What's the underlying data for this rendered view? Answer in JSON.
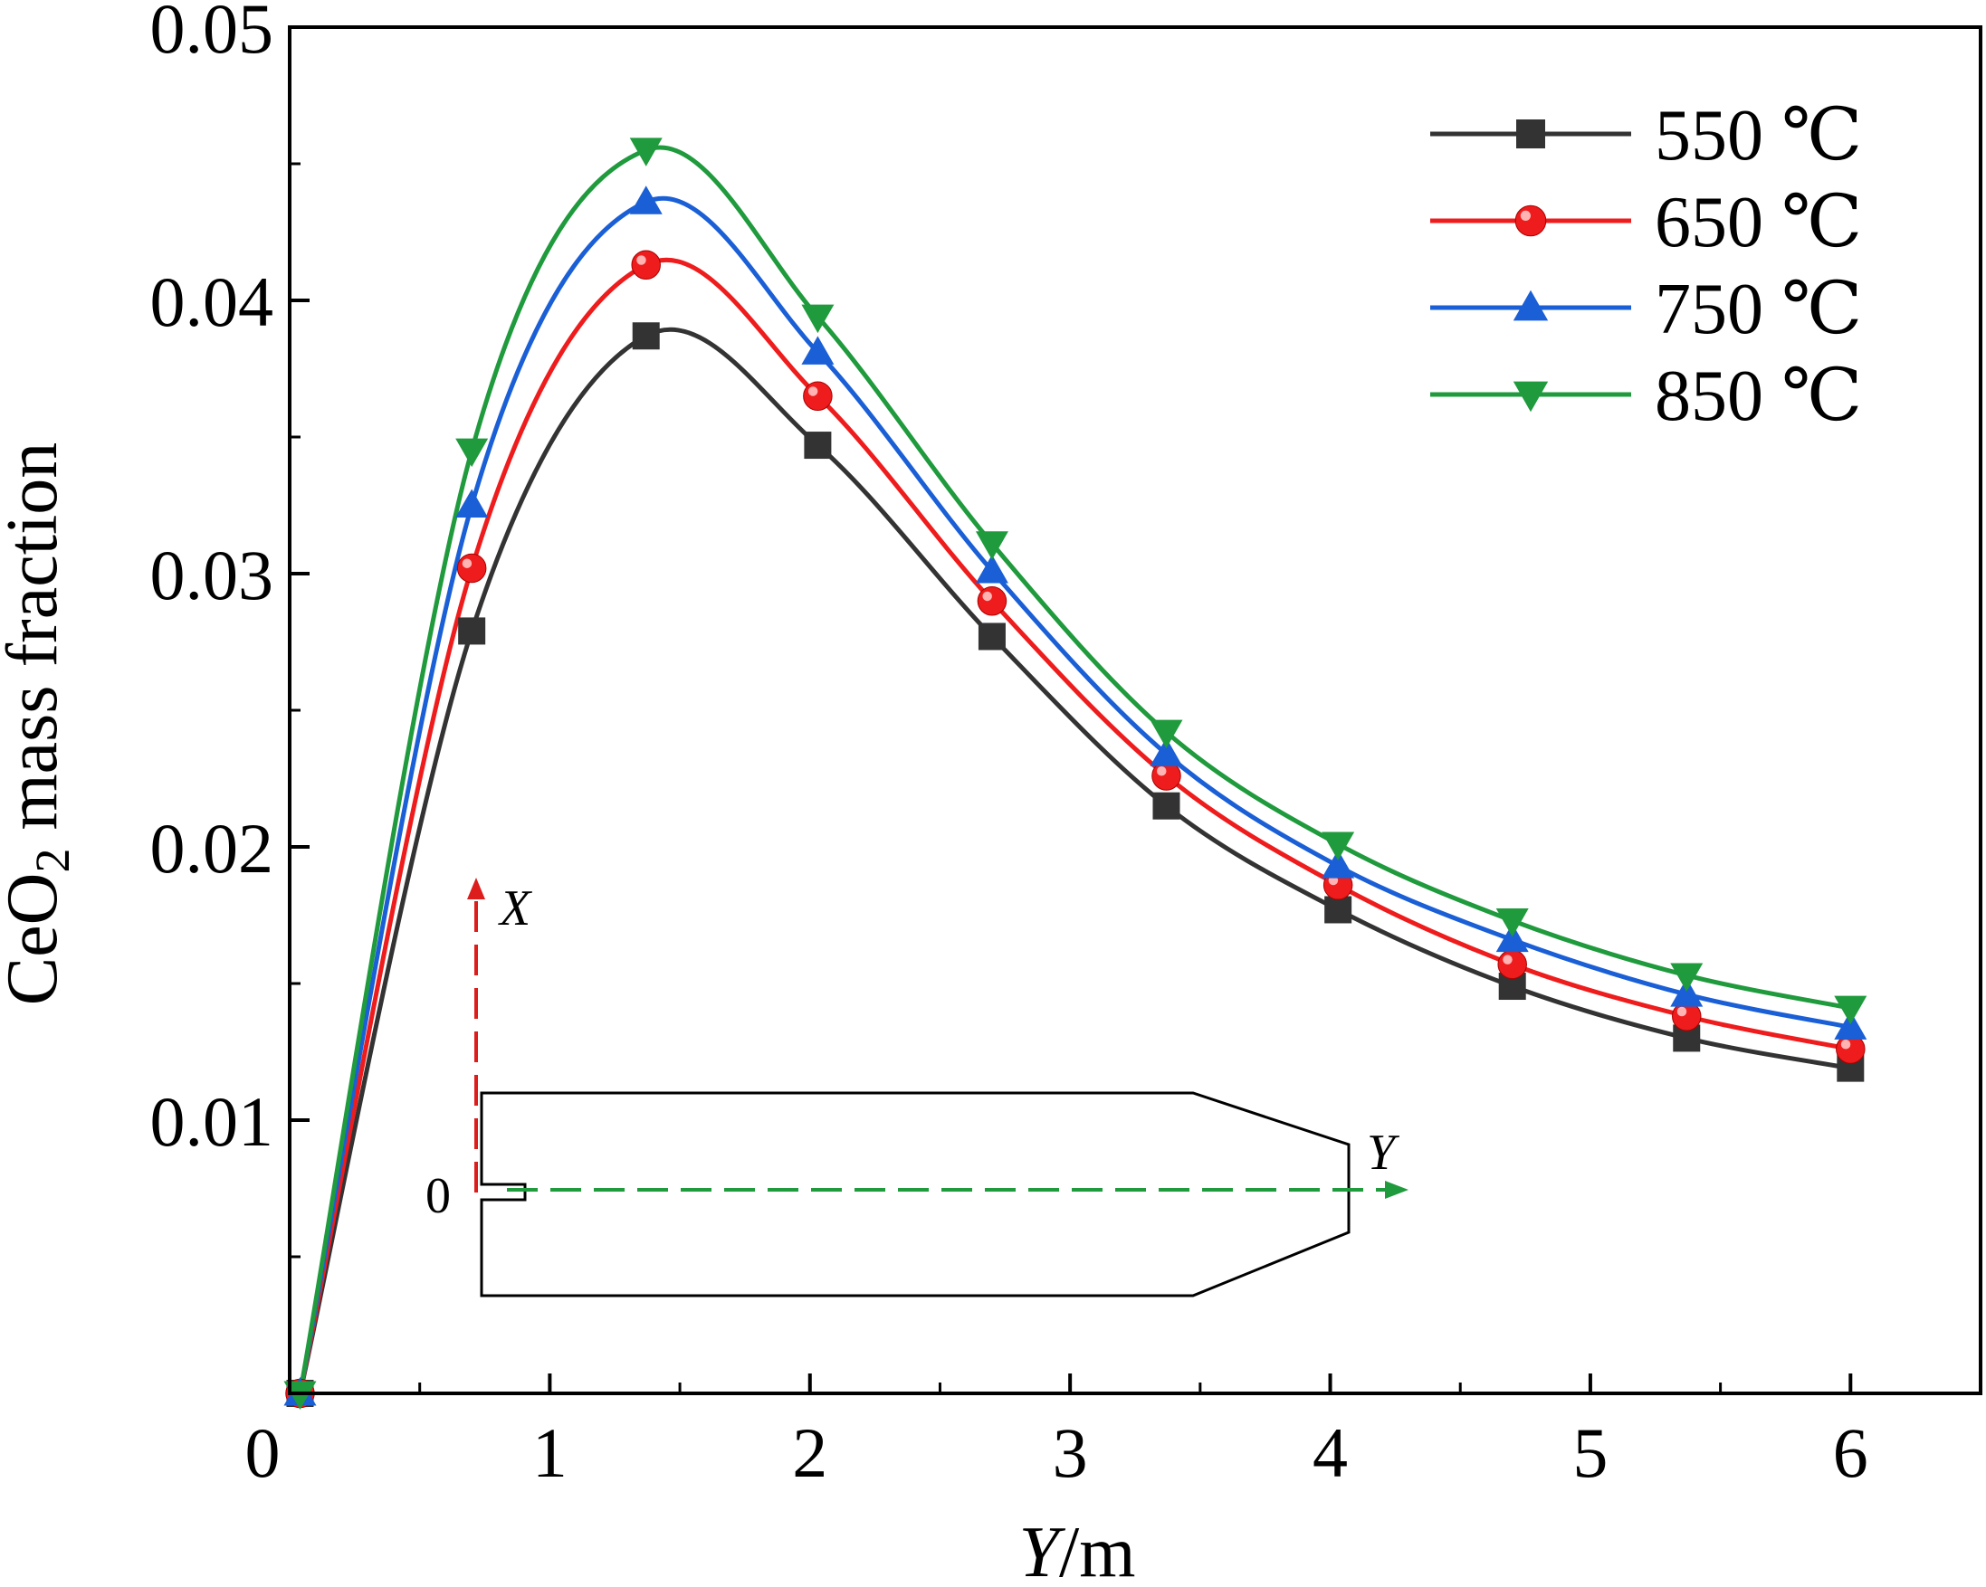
{
  "chart_data": {
    "type": "line",
    "xlabel": {
      "italic": "Y",
      "rest": "/m"
    },
    "ylabel": {
      "pre": "CeO",
      "sub": "2",
      "post": " mass fraction"
    },
    "xlim": [
      0,
      6.5
    ],
    "ylim": [
      0,
      0.05
    ],
    "x_ticks": [
      {
        "value": 0,
        "label": "0"
      },
      {
        "value": 1,
        "label": "1"
      },
      {
        "value": 2,
        "label": "2"
      },
      {
        "value": 3,
        "label": "3"
      },
      {
        "value": 4,
        "label": "4"
      },
      {
        "value": 5,
        "label": "5"
      },
      {
        "value": 6,
        "label": "6"
      }
    ],
    "y_ticks": [
      {
        "value": 0.01,
        "label": "0.01"
      },
      {
        "value": 0.02,
        "label": "0.02"
      },
      {
        "value": 0.03,
        "label": "0.03"
      },
      {
        "value": 0.04,
        "label": "0.04"
      },
      {
        "value": 0.05,
        "label": "0.05"
      }
    ],
    "grid": false,
    "legend_position": "top-right",
    "x": [
      0.04,
      0.7,
      1.37,
      2.03,
      2.7,
      3.37,
      4.03,
      4.7,
      5.37,
      6.0
    ],
    "series": [
      {
        "name": "550 ℃",
        "color": "#333333",
        "marker": "square",
        "values": [
          0.0,
          0.0279,
          0.0387,
          0.0347,
          0.0277,
          0.0215,
          0.0177,
          0.0149,
          0.013,
          0.0119
        ]
      },
      {
        "name": "650 ℃",
        "color": "#ee1c1c",
        "marker": "circle",
        "values": [
          0.0,
          0.0302,
          0.0413,
          0.0365,
          0.029,
          0.0226,
          0.0186,
          0.0157,
          0.0138,
          0.0126
        ]
      },
      {
        "name": "750 ℃",
        "color": "#1a5fd6",
        "marker": "triangle-up",
        "values": [
          0.0,
          0.0325,
          0.0436,
          0.0381,
          0.0301,
          0.0234,
          0.0193,
          0.0166,
          0.0146,
          0.0134
        ]
      },
      {
        "name": "850 ℃",
        "color": "#1f9a3c",
        "marker": "triangle-down",
        "values": [
          0.0,
          0.0345,
          0.0455,
          0.0394,
          0.0311,
          0.0242,
          0.0201,
          0.0173,
          0.0153,
          0.0141
        ]
      }
    ],
    "inset": {
      "x_axis_label": "X",
      "y_axis_label": "Y",
      "origin_label": "0",
      "x_axis_color": "#dd1c1c",
      "y_axis_color": "#1f9a3c"
    }
  }
}
